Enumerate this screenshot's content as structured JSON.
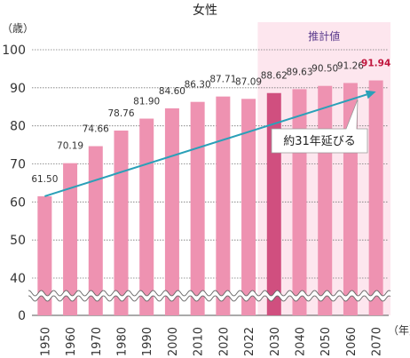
{
  "chart_data": {
    "type": "bar",
    "title": "女性",
    "ylabel": "（歳）",
    "xlabel": "（年）",
    "categories": [
      "1950",
      "1960",
      "1970",
      "1980",
      "1990",
      "2000",
      "2010",
      "2020",
      "2022",
      "2030",
      "2040",
      "2050",
      "2060",
      "2070"
    ],
    "values": [
      61.5,
      70.19,
      74.66,
      78.76,
      81.9,
      84.6,
      86.3,
      87.71,
      87.09,
      88.62,
      89.63,
      90.5,
      91.26,
      91.94
    ],
    "value_labels": [
      "61.50",
      "70.19",
      "74.66",
      "78.76",
      "81.90",
      "84.60",
      "86.30",
      "87.71",
      "87.09",
      "88.62",
      "89.63",
      "90.50",
      "91.26",
      "91.94"
    ],
    "y_ticks": [
      "0",
      "40",
      "50",
      "60",
      "70",
      "80",
      "90",
      "100"
    ],
    "ylim": [
      0,
      100
    ],
    "axis_break": [
      0,
      40
    ],
    "projection": {
      "label": "推計値",
      "from_category": "2030",
      "to_category": "2070"
    },
    "highlight_category": "2030",
    "emphasized_label_category": "2070",
    "trend": {
      "from_category": "1950",
      "to_category": "2070",
      "from_value": 61.5,
      "to_value": 89.0
    },
    "callout": {
      "text": "約31年延びる"
    },
    "grid": "horizontal",
    "colors": {
      "bar": "#ee92b1",
      "bar_highlight": "#d04f7f",
      "projection_bg": "#fde6ee",
      "trend_line": "#2aa0b8",
      "emphasis_label": "#c0143c",
      "grid": "#777777"
    }
  }
}
